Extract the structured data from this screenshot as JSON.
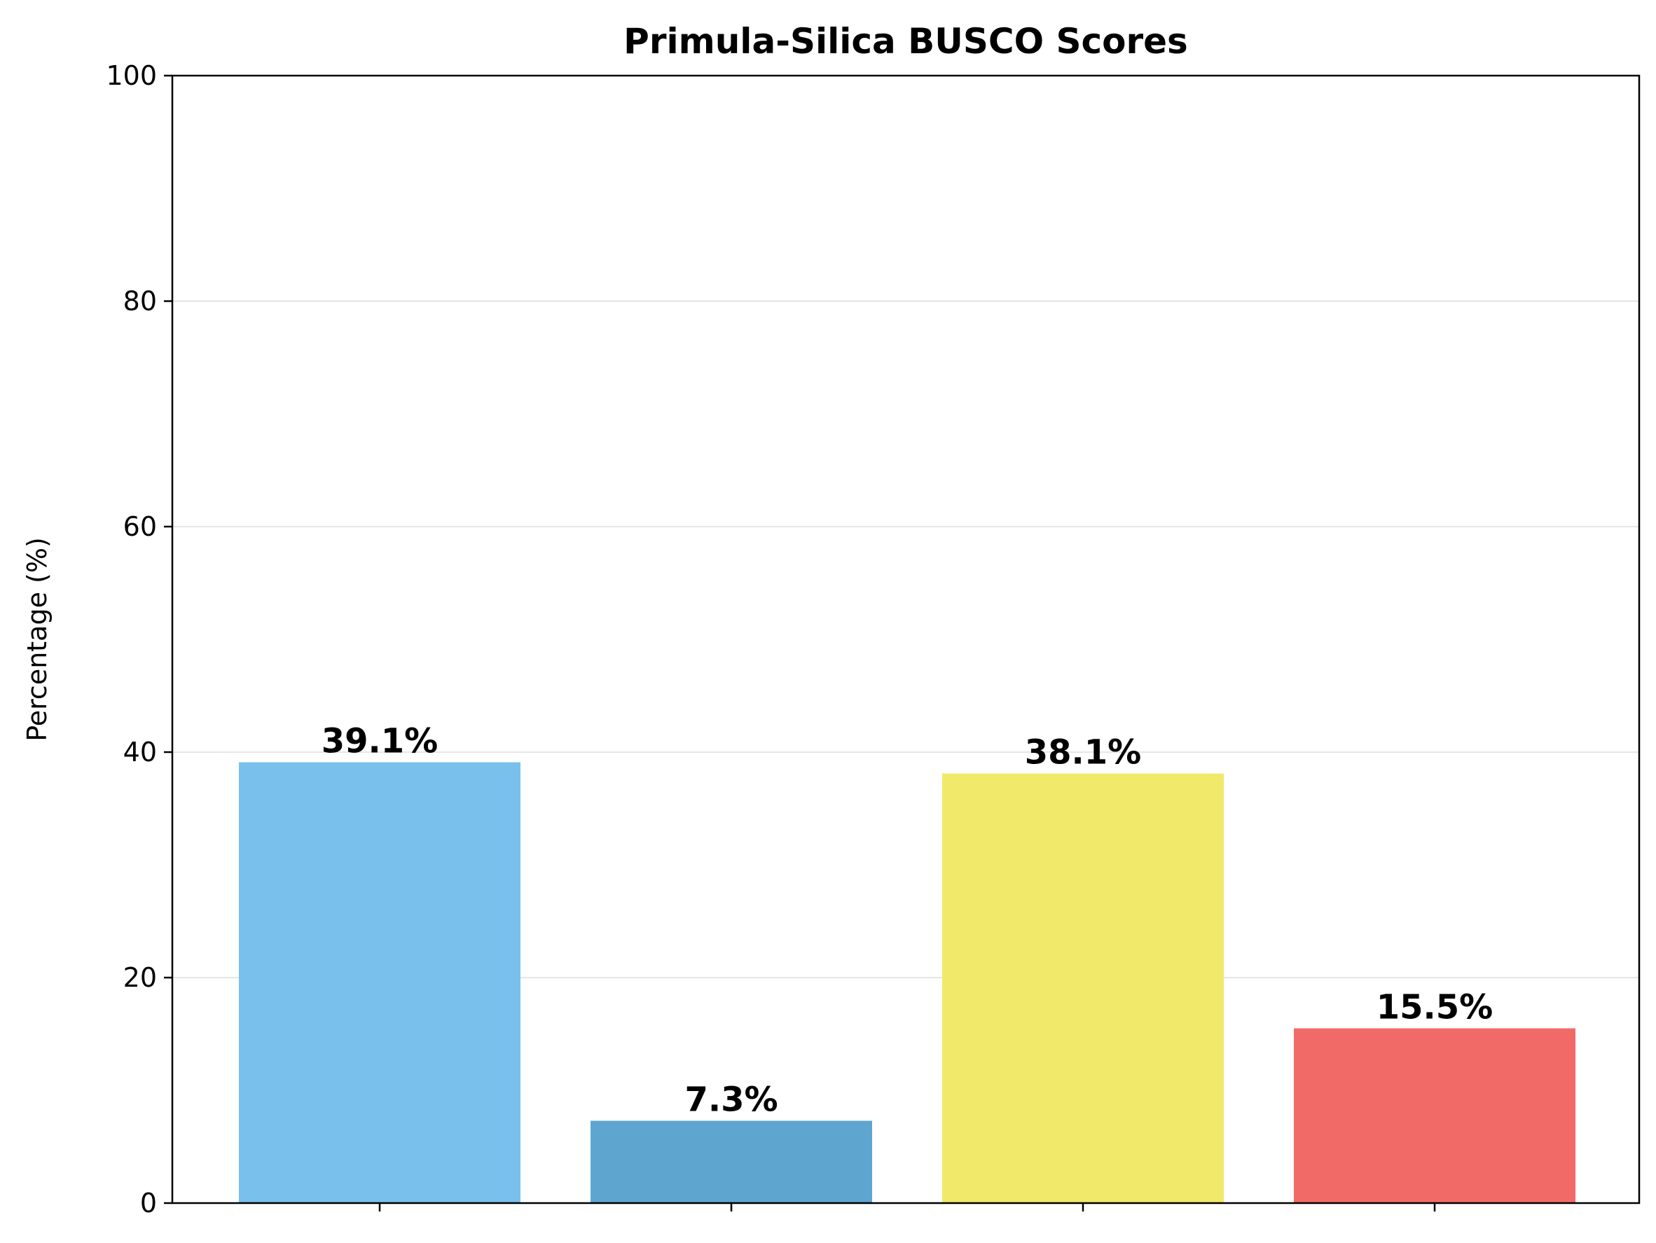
{
  "chart_data": {
    "type": "bar",
    "title": "Primula-Silica BUSCO Scores",
    "xlabel": "",
    "ylabel": "Percentage (%)",
    "ylim": [
      0,
      100
    ],
    "yticks": [
      0,
      20,
      40,
      60,
      80,
      100
    ],
    "ytick_labels": [
      "0",
      "20",
      "40",
      "60",
      "80",
      "100"
    ],
    "grid": "horizontal",
    "categories": [
      "",
      "",
      "",
      ""
    ],
    "values": [
      39.1,
      7.3,
      38.1,
      15.5
    ],
    "data_labels": [
      "39.1%",
      "7.3%",
      "38.1%",
      "15.5%"
    ],
    "colors": [
      "#79c1ec",
      "#5ea6d0",
      "#f1e969",
      "#f26a67"
    ],
    "grid_color": "#e5e5e5"
  }
}
